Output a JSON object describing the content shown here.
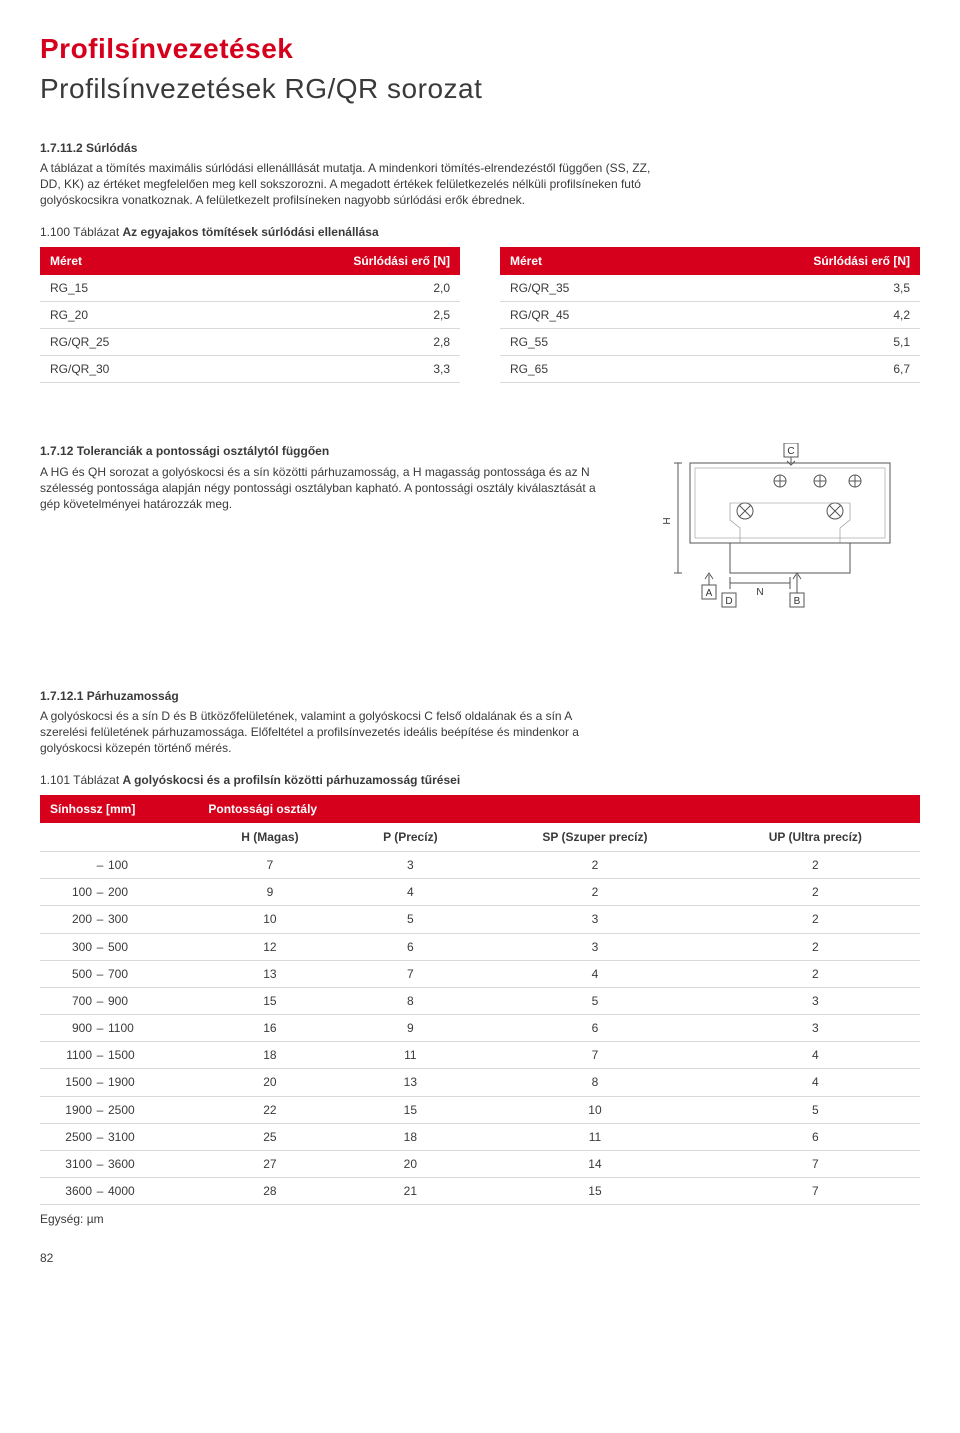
{
  "header": {
    "title": "Profilsínvezetések",
    "subtitle": "Profilsínvezetések RG/QR sorozat"
  },
  "section1": {
    "heading": "1.7.11.2 Súrlódás",
    "para": "A táblázat a tömítés maximális súrlódási ellenálllását mutatja. A mindenkori tömítés-elrendezéstől függően (SS, ZZ, DD, KK) az értéket megfelelően meg kell sokszorozni. A megadott értékek felületkezelés nélküli profilsíneken futó golyóskocsikra vonatkoznak. A felületkezelt profilsíneken nagyobb súrlódási erők ébrednek.",
    "tableCaptionLight": "1.100 Táblázat ",
    "tableCaptionBold": "Az egyajakos tömítések súrlódási ellenállása",
    "colSize": "Méret",
    "colForce": "Súrlódási erő [N]",
    "left": [
      {
        "size": "RG_15",
        "val": "2,0"
      },
      {
        "size": "RG_20",
        "val": "2,5"
      },
      {
        "size": "RG/QR_25",
        "val": "2,8"
      },
      {
        "size": "RG/QR_30",
        "val": "3,3"
      }
    ],
    "right": [
      {
        "size": "RG/QR_35",
        "val": "3,5"
      },
      {
        "size": "RG/QR_45",
        "val": "4,2"
      },
      {
        "size": "RG_55",
        "val": "5,1"
      },
      {
        "size": "RG_65",
        "val": "6,7"
      }
    ]
  },
  "section2": {
    "heading": "1.7.12 Toleranciák a pontossági osztálytól függően",
    "para": "A HG és QH sorozat a golyóskocsi és a sín közötti párhuzamosság, a H magasság pontossága és az N szélesség pontossága alapján négy pontossági osztályban kapható. A pontossági osztály kiválasztását a gép követelményei határozzák meg.",
    "labels": {
      "C": "C",
      "H": "H",
      "N": "N",
      "A": "A",
      "B": "B",
      "D": "D"
    }
  },
  "section3": {
    "heading": "1.7.12.1 Párhuzamosság",
    "para": "A golyóskocsi és a sín D és B ütközőfelületének, valamint a golyóskocsi C felső oldalának és a sín A szerelési felületének párhuzamossága. Előfeltétel a profilsínvezetés ideális beépítése és mindenkor a golyóskocsi közepén történő mérés.",
    "tableCaptionLight": "1.101 Táblázat ",
    "tableCaptionBold": "A golyóskocsi és a profilsín közötti párhuzamosság tűrései",
    "colRail": "Sínhossz [mm]",
    "colClass": "Pontossági osztály",
    "classes": [
      "H (Magas)",
      "P (Precíz)",
      "SP (Szuper precíz)",
      "UP (Ultra precíz)"
    ],
    "rows": [
      {
        "range": [
          "–",
          "100"
        ],
        "vals": [
          "7",
          "3",
          "2",
          "2"
        ]
      },
      {
        "range": [
          "100",
          "200"
        ],
        "vals": [
          "9",
          "4",
          "2",
          "2"
        ]
      },
      {
        "range": [
          "200",
          "300"
        ],
        "vals": [
          "10",
          "5",
          "3",
          "2"
        ]
      },
      {
        "range": [
          "300",
          "500"
        ],
        "vals": [
          "12",
          "6",
          "3",
          "2"
        ]
      },
      {
        "range": [
          "500",
          "700"
        ],
        "vals": [
          "13",
          "7",
          "4",
          "2"
        ]
      },
      {
        "range": [
          "700",
          "900"
        ],
        "vals": [
          "15",
          "8",
          "5",
          "3"
        ]
      },
      {
        "range": [
          "900",
          "1100"
        ],
        "vals": [
          "16",
          "9",
          "6",
          "3"
        ]
      },
      {
        "range": [
          "1100",
          "1500"
        ],
        "vals": [
          "18",
          "11",
          "7",
          "4"
        ]
      },
      {
        "range": [
          "1500",
          "1900"
        ],
        "vals": [
          "20",
          "13",
          "8",
          "4"
        ]
      },
      {
        "range": [
          "1900",
          "2500"
        ],
        "vals": [
          "22",
          "15",
          "10",
          "5"
        ]
      },
      {
        "range": [
          "2500",
          "3100"
        ],
        "vals": [
          "25",
          "18",
          "11",
          "6"
        ]
      },
      {
        "range": [
          "3100",
          "3600"
        ],
        "vals": [
          "27",
          "20",
          "14",
          "7"
        ]
      },
      {
        "range": [
          "3600",
          "4000"
        ],
        "vals": [
          "28",
          "21",
          "15",
          "7"
        ]
      }
    ],
    "unit": "Egység: µm"
  },
  "pageNumber": "82"
}
